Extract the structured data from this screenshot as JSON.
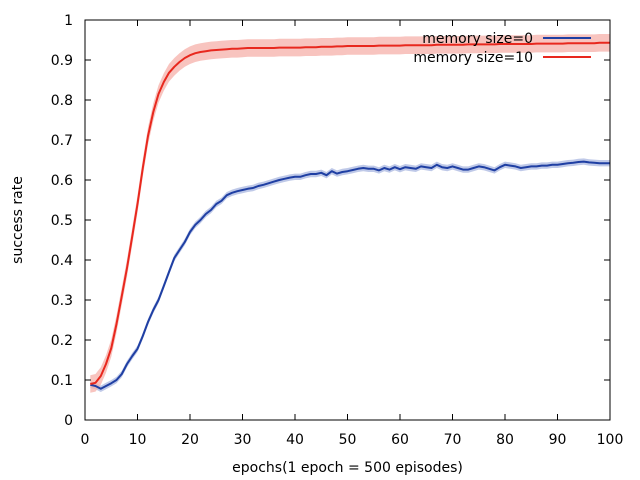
{
  "chart_data": {
    "type": "line",
    "xlabel": "epochs(1 epoch = 500 episodes)",
    "ylabel": "success rate",
    "xlim": [
      0,
      100
    ],
    "ylim": [
      0,
      1
    ],
    "xticks": [
      "0",
      "10",
      "20",
      "30",
      "40",
      "50",
      "60",
      "70",
      "80",
      "90",
      "100"
    ],
    "yticks": [
      "0",
      "0.1",
      "0.2",
      "0.3",
      "0.4",
      "0.5",
      "0.6",
      "0.7",
      "0.8",
      "0.9",
      "1"
    ],
    "grid": false,
    "legend_position": "top-right",
    "series": [
      {
        "name": "memory size=0",
        "color": "#1f3fa3",
        "band_color": "#a9b7e0",
        "x": [
          1,
          2,
          3,
          4,
          5,
          6,
          7,
          8,
          9,
          10,
          11,
          12,
          13,
          14,
          15,
          16,
          17,
          18,
          19,
          20,
          21,
          22,
          23,
          24,
          25,
          26,
          27,
          28,
          29,
          30,
          31,
          32,
          33,
          34,
          35,
          36,
          37,
          38,
          39,
          40,
          41,
          42,
          43,
          44,
          45,
          46,
          47,
          48,
          49,
          50,
          51,
          52,
          53,
          54,
          55,
          56,
          57,
          58,
          59,
          60,
          61,
          62,
          63,
          64,
          65,
          66,
          67,
          68,
          69,
          70,
          71,
          72,
          73,
          74,
          75,
          76,
          77,
          78,
          79,
          80,
          81,
          82,
          83,
          84,
          85,
          86,
          87,
          88,
          89,
          90,
          91,
          92,
          93,
          94,
          95,
          96,
          97,
          98,
          99,
          100
        ],
        "values": [
          0.088,
          0.085,
          0.078,
          0.085,
          0.092,
          0.1,
          0.115,
          0.14,
          0.16,
          0.178,
          0.21,
          0.245,
          0.275,
          0.3,
          0.335,
          0.37,
          0.405,
          0.425,
          0.445,
          0.47,
          0.488,
          0.5,
          0.515,
          0.525,
          0.54,
          0.548,
          0.562,
          0.568,
          0.572,
          0.575,
          0.578,
          0.58,
          0.585,
          0.588,
          0.592,
          0.596,
          0.6,
          0.603,
          0.606,
          0.608,
          0.608,
          0.612,
          0.615,
          0.615,
          0.618,
          0.612,
          0.622,
          0.616,
          0.62,
          0.622,
          0.625,
          0.628,
          0.63,
          0.628,
          0.628,
          0.624,
          0.63,
          0.626,
          0.632,
          0.627,
          0.632,
          0.63,
          0.628,
          0.634,
          0.632,
          0.63,
          0.638,
          0.632,
          0.63,
          0.634,
          0.63,
          0.626,
          0.626,
          0.63,
          0.634,
          0.632,
          0.628,
          0.624,
          0.632,
          0.638,
          0.636,
          0.634,
          0.63,
          0.632,
          0.634,
          0.634,
          0.636,
          0.636,
          0.638,
          0.638,
          0.64,
          0.642,
          0.643,
          0.645,
          0.646,
          0.644,
          0.643,
          0.642,
          0.642,
          0.642
        ],
        "band": 0.008
      },
      {
        "name": "memory size=10",
        "color": "#e8281e",
        "band_color": "#f6b0aa",
        "x": [
          1,
          2,
          3,
          4,
          5,
          6,
          7,
          8,
          9,
          10,
          11,
          12,
          13,
          14,
          15,
          16,
          17,
          18,
          19,
          20,
          21,
          22,
          23,
          24,
          25,
          26,
          27,
          28,
          29,
          30,
          31,
          32,
          33,
          34,
          35,
          36,
          37,
          38,
          39,
          40,
          41,
          42,
          43,
          44,
          45,
          46,
          47,
          48,
          49,
          50,
          51,
          52,
          53,
          54,
          55,
          56,
          57,
          58,
          59,
          60,
          61,
          62,
          63,
          64,
          65,
          66,
          67,
          68,
          69,
          70,
          71,
          72,
          73,
          74,
          75,
          76,
          77,
          78,
          79,
          80,
          81,
          82,
          83,
          84,
          85,
          86,
          87,
          88,
          89,
          90,
          91,
          92,
          93,
          94,
          95,
          96,
          97,
          98,
          99,
          100
        ],
        "values": [
          0.09,
          0.093,
          0.11,
          0.14,
          0.18,
          0.24,
          0.31,
          0.38,
          0.46,
          0.54,
          0.63,
          0.71,
          0.77,
          0.815,
          0.845,
          0.868,
          0.883,
          0.895,
          0.905,
          0.912,
          0.917,
          0.92,
          0.922,
          0.924,
          0.925,
          0.926,
          0.927,
          0.928,
          0.928,
          0.929,
          0.93,
          0.93,
          0.93,
          0.93,
          0.93,
          0.93,
          0.931,
          0.931,
          0.931,
          0.931,
          0.931,
          0.932,
          0.932,
          0.932,
          0.933,
          0.933,
          0.933,
          0.934,
          0.934,
          0.935,
          0.935,
          0.935,
          0.935,
          0.935,
          0.935,
          0.936,
          0.936,
          0.936,
          0.936,
          0.936,
          0.937,
          0.937,
          0.937,
          0.937,
          0.937,
          0.937,
          0.938,
          0.938,
          0.938,
          0.938,
          0.938,
          0.938,
          0.939,
          0.939,
          0.939,
          0.939,
          0.939,
          0.939,
          0.94,
          0.94,
          0.94,
          0.94,
          0.94,
          0.94,
          0.94,
          0.941,
          0.941,
          0.941,
          0.941,
          0.941,
          0.941,
          0.942,
          0.942,
          0.942,
          0.942,
          0.942,
          0.942,
          0.943,
          0.943,
          0.943
        ],
        "band": 0.022
      }
    ]
  }
}
